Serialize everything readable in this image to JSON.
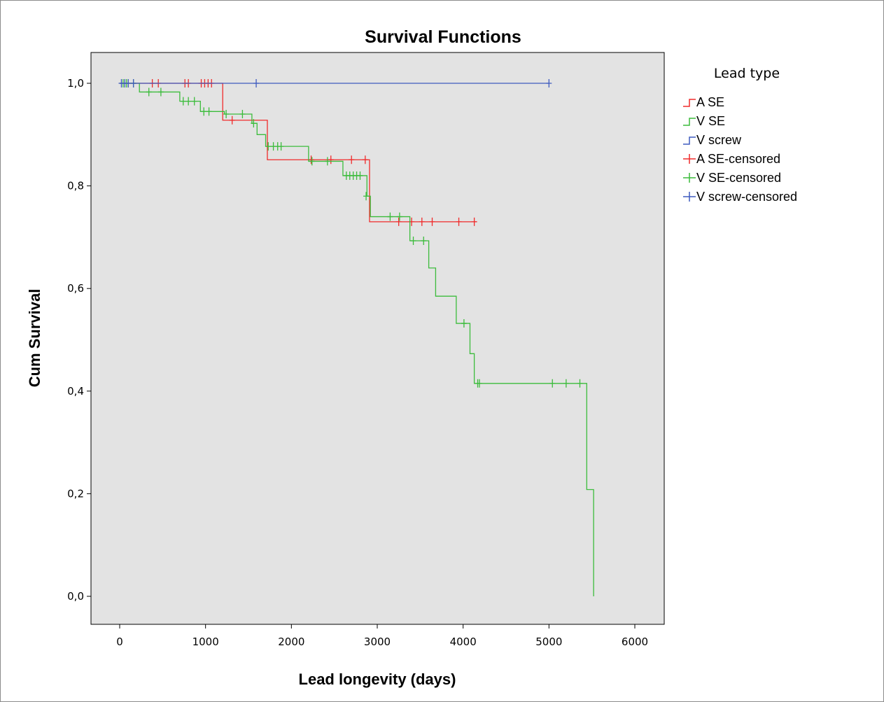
{
  "chart_data": {
    "type": "line",
    "title": "Survival Functions",
    "xlabel": "Lead longevity (days)",
    "ylabel": "Cum Survival",
    "xlim": [
      0,
      6000
    ],
    "ylim": [
      0,
      1.0
    ],
    "x_ticks": [
      0,
      1000,
      2000,
      3000,
      4000,
      5000,
      6000
    ],
    "x_tick_labels": [
      "0",
      "1000",
      "2000",
      "3000",
      "4000",
      "5000",
      "6000"
    ],
    "y_ticks": [
      0,
      0.2,
      0.4,
      0.6,
      0.8,
      1.0
    ],
    "y_tick_labels": [
      "0,0",
      "0,2",
      "0,4",
      "0,6",
      "0,8",
      "1,0"
    ],
    "grid": false,
    "plot_background": "#e3e3e3",
    "legend": {
      "title": "Lead type",
      "placement": "right",
      "entries": [
        {
          "label": "A SE",
          "color": "#f02b2b",
          "kind": "step"
        },
        {
          "label": "V SE",
          "color": "#3cbc3c",
          "kind": "step"
        },
        {
          "label": "V screw",
          "color": "#3f5bbf",
          "kind": "step"
        },
        {
          "label": "A SE-censored",
          "color": "#f02b2b",
          "kind": "censor"
        },
        {
          "label": "V SE-censored",
          "color": "#3cbc3c",
          "kind": "censor"
        },
        {
          "label": "V screw-censored",
          "color": "#3f5bbf",
          "kind": "censor"
        }
      ]
    },
    "series": [
      {
        "name": "A SE",
        "color": "#f02b2b",
        "steps": [
          [
            0,
            1.0
          ],
          [
            1200,
            0.928
          ],
          [
            1720,
            0.851
          ],
          [
            2910,
            0.73
          ],
          [
            4160,
            0.73
          ]
        ],
        "censored": [
          [
            380,
            1.0
          ],
          [
            450,
            1.0
          ],
          [
            760,
            1.0
          ],
          [
            800,
            1.0
          ],
          [
            950,
            1.0
          ],
          [
            990,
            1.0
          ],
          [
            1030,
            1.0
          ],
          [
            1070,
            1.0
          ],
          [
            1310,
            0.928
          ],
          [
            2230,
            0.851
          ],
          [
            2460,
            0.851
          ],
          [
            2700,
            0.851
          ],
          [
            2860,
            0.851
          ],
          [
            3250,
            0.73
          ],
          [
            3400,
            0.73
          ],
          [
            3520,
            0.73
          ],
          [
            3640,
            0.73
          ],
          [
            3950,
            0.73
          ],
          [
            4130,
            0.73
          ]
        ]
      },
      {
        "name": "V SE",
        "color": "#3cbc3c",
        "steps": [
          [
            0,
            1.0
          ],
          [
            230,
            0.983
          ],
          [
            700,
            0.965
          ],
          [
            940,
            0.945
          ],
          [
            1220,
            0.94
          ],
          [
            1540,
            0.922
          ],
          [
            1600,
            0.9
          ],
          [
            1700,
            0.877
          ],
          [
            2200,
            0.848
          ],
          [
            2600,
            0.82
          ],
          [
            2880,
            0.78
          ],
          [
            2920,
            0.74
          ],
          [
            3380,
            0.693
          ],
          [
            3600,
            0.64
          ],
          [
            3680,
            0.585
          ],
          [
            3920,
            0.532
          ],
          [
            4080,
            0.473
          ],
          [
            4130,
            0.415
          ],
          [
            5440,
            0.208
          ],
          [
            5520,
            0.0
          ]
        ],
        "censored": [
          [
            40,
            1.0
          ],
          [
            80,
            1.0
          ],
          [
            160,
            1.0
          ],
          [
            340,
            0.983
          ],
          [
            480,
            0.983
          ],
          [
            740,
            0.965
          ],
          [
            800,
            0.965
          ],
          [
            870,
            0.965
          ],
          [
            980,
            0.945
          ],
          [
            1040,
            0.945
          ],
          [
            1240,
            0.94
          ],
          [
            1430,
            0.94
          ],
          [
            1560,
            0.922
          ],
          [
            1730,
            0.877
          ],
          [
            1790,
            0.877
          ],
          [
            1840,
            0.877
          ],
          [
            1880,
            0.877
          ],
          [
            2240,
            0.848
          ],
          [
            2420,
            0.848
          ],
          [
            2640,
            0.82
          ],
          [
            2680,
            0.82
          ],
          [
            2720,
            0.82
          ],
          [
            2760,
            0.82
          ],
          [
            2800,
            0.82
          ],
          [
            2870,
            0.78
          ],
          [
            3150,
            0.74
          ],
          [
            3260,
            0.74
          ],
          [
            3420,
            0.693
          ],
          [
            3540,
            0.693
          ],
          [
            4010,
            0.532
          ],
          [
            4170,
            0.415
          ],
          [
            4190,
            0.415
          ],
          [
            5040,
            0.415
          ],
          [
            5200,
            0.415
          ],
          [
            5360,
            0.415
          ]
        ]
      },
      {
        "name": "V screw",
        "color": "#3f5bbf",
        "steps": [
          [
            0,
            1.0
          ],
          [
            5000,
            1.0
          ]
        ],
        "censored": [
          [
            20,
            1.0
          ],
          [
            60,
            1.0
          ],
          [
            100,
            1.0
          ],
          [
            160,
            1.0
          ],
          [
            1590,
            1.0
          ],
          [
            5000,
            1.0
          ]
        ]
      }
    ]
  }
}
